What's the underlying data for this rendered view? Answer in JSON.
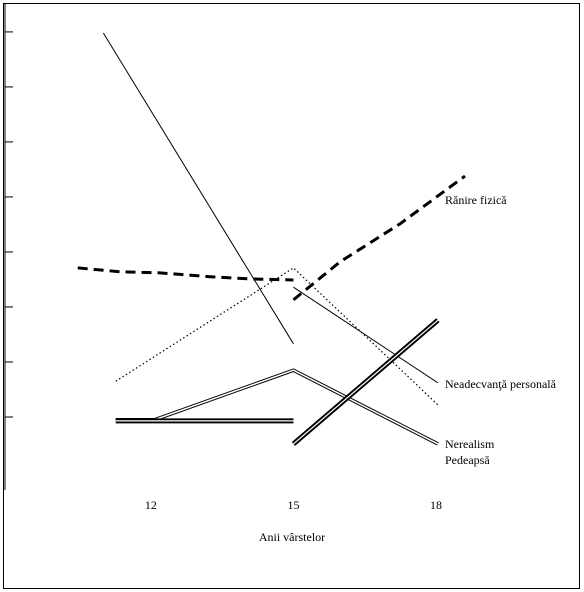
{
  "chart_data": {
    "type": "line",
    "x_label": "Anii vârstelor",
    "xlim": [
      8.93,
      21.03
    ],
    "xticks": [
      12,
      15,
      18
    ],
    "ylim": [
      0,
      8.58
    ],
    "yticks": [
      1,
      2,
      3,
      4,
      5,
      6,
      7,
      8
    ],
    "series": [
      {
        "line_style": "solid",
        "color": "#000000",
        "x": [
          11,
          15
        ],
        "values": [
          7.98,
          2.33
        ]
      },
      {
        "name": "Rănire fizică",
        "line_style": "dashed",
        "color": "#000000",
        "x": [
          10.46,
          11.35,
          12.19,
          13.24,
          14.08,
          15,
          null,
          15,
          15.98,
          17.24,
          18.61
        ],
        "values": [
          3.71,
          3.64,
          3.62,
          3.55,
          3.51,
          3.49,
          null,
          3.13,
          3.82,
          4.51,
          5.38
        ]
      },
      {
        "line_style": "dotted",
        "color": "#000000",
        "x": [
          11.26,
          15,
          18.04
        ],
        "values": [
          1.65,
          3.71,
          1.22
        ]
      },
      {
        "name": "Neadecvanţă personală",
        "line_style": "solid",
        "color": "#000000",
        "x": [
          15,
          18.04
        ],
        "values": [
          3.36,
          1.62
        ]
      },
      {
        "name": "Nerealism",
        "line_style": "double",
        "color": "#000000",
        "x": [
          11.26,
          12.08,
          15,
          18.04
        ],
        "values": [
          0.95,
          0.95,
          1.85,
          0.51
        ]
      },
      {
        "name": "Pedeapsă",
        "line_style": "thick-double",
        "color": "#000000",
        "x": [
          11.26,
          15,
          null,
          15,
          18.04
        ],
        "values": [
          0.93,
          0.93,
          null,
          0.51,
          2.76
        ]
      }
    ]
  }
}
